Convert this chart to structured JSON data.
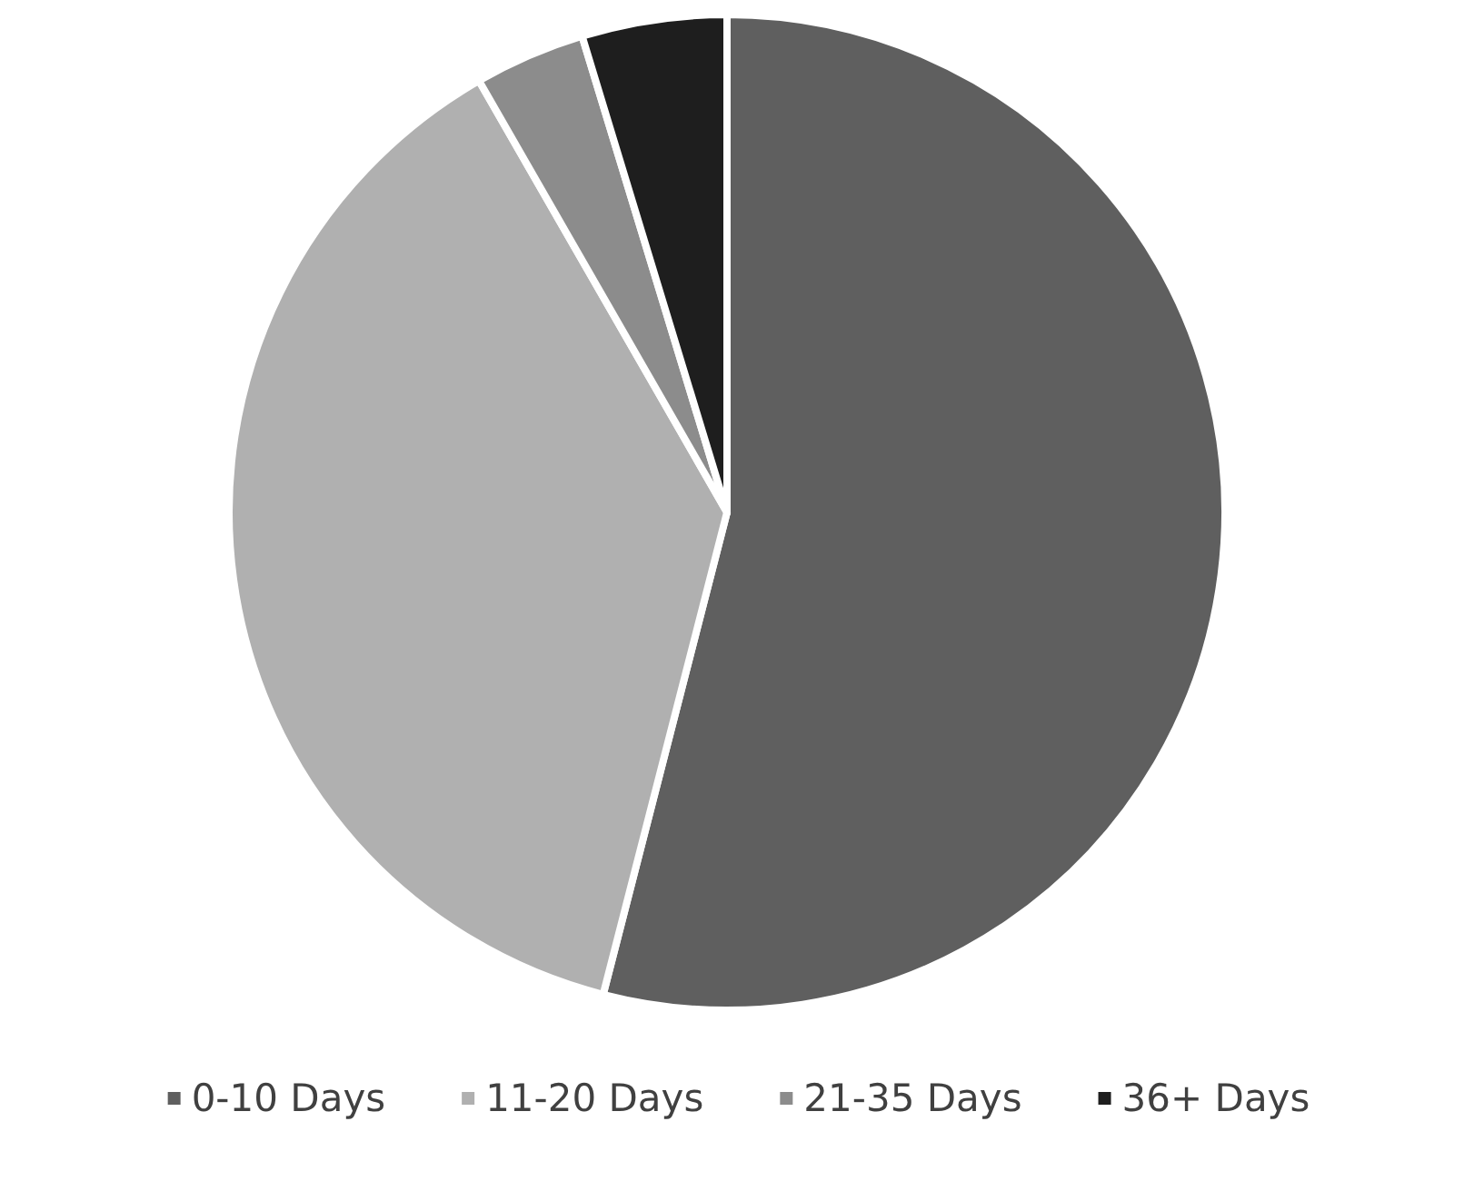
{
  "chart_data": {
    "type": "pie",
    "categories": [
      "0-10 Days",
      "11-20 Days",
      "21-35 Days",
      "36+ Days"
    ],
    "values": [
      54,
      37.7,
      3.6,
      4.7
    ],
    "colors": [
      "#5f5f5f",
      "#b0b0b0",
      "#8c8c8c",
      "#1e1e1e"
    ],
    "legend": "bottom"
  }
}
